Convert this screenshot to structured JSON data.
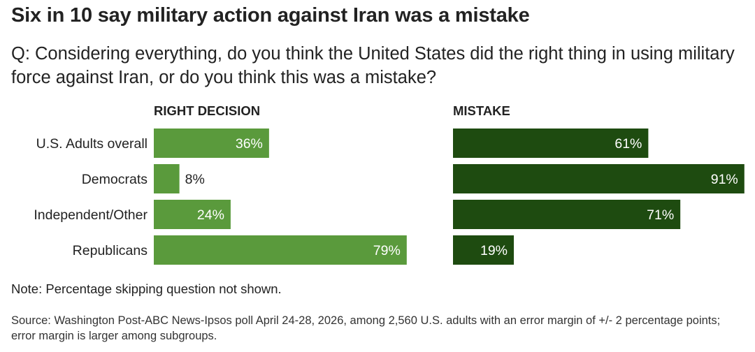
{
  "header": {
    "title": "Six in 10 say military action against Iran was a mistake",
    "subtitle": "Q: Considering everything, do you think the United States did the right thing in using military force against Iran, or do you think this was a mistake?"
  },
  "footer": {
    "note": "Note: Percentage skipping question not shown.",
    "source": "Source: Washington Post-ABC News-Ipsos poll April 24-28, 2026, among 2,560 U.S. adults with an error margin of +/- 2 percentage points; error margin is larger among subgroups."
  },
  "chart_data": {
    "type": "bar",
    "orientation": "horizontal",
    "categories": [
      "U.S. Adults overall",
      "Democrats",
      "Independent/Other",
      "Republicans"
    ],
    "series": [
      {
        "name": "RIGHT DECISION",
        "values": [
          36,
          8,
          24,
          79
        ],
        "labels": [
          "36%",
          "8%",
          "24%",
          "79%"
        ],
        "color": "#5a9a3c"
      },
      {
        "name": "MISTAKE",
        "values": [
          61,
          91,
          71,
          19
        ],
        "labels": [
          "61%",
          "91%",
          "71%",
          "19%"
        ],
        "color": "#1e4b10"
      }
    ],
    "xlim": [
      0,
      100
    ],
    "unit": "%",
    "grid": false,
    "legend": "none"
  }
}
